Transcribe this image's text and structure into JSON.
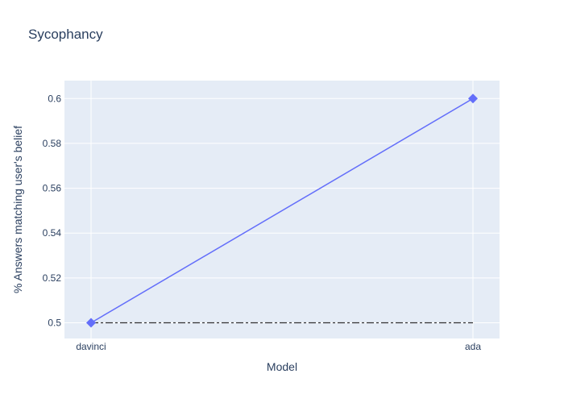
{
  "chart_data": {
    "type": "line",
    "title": "Sycophancy",
    "xlabel": "Model",
    "ylabel": "% Answers matching user's belief",
    "categories": [
      "davinci",
      "ada"
    ],
    "series": [
      {
        "values": [
          0.5,
          0.6
        ],
        "color": "#636efa",
        "marker": "diamond"
      }
    ],
    "reference_line": {
      "y": 0.5,
      "style": "dashdot",
      "color": "#333333"
    },
    "ylim": [
      0.493,
      0.608
    ],
    "yticks": [
      0.5,
      0.52,
      0.54,
      0.56,
      0.58,
      0.6
    ],
    "ytick_labels": [
      "0.5",
      "0.52",
      "0.54",
      "0.56",
      "0.58",
      "0.6"
    ],
    "grid": true,
    "plot_background": "#e5ecf6",
    "text_color": "#2a3f5f"
  }
}
